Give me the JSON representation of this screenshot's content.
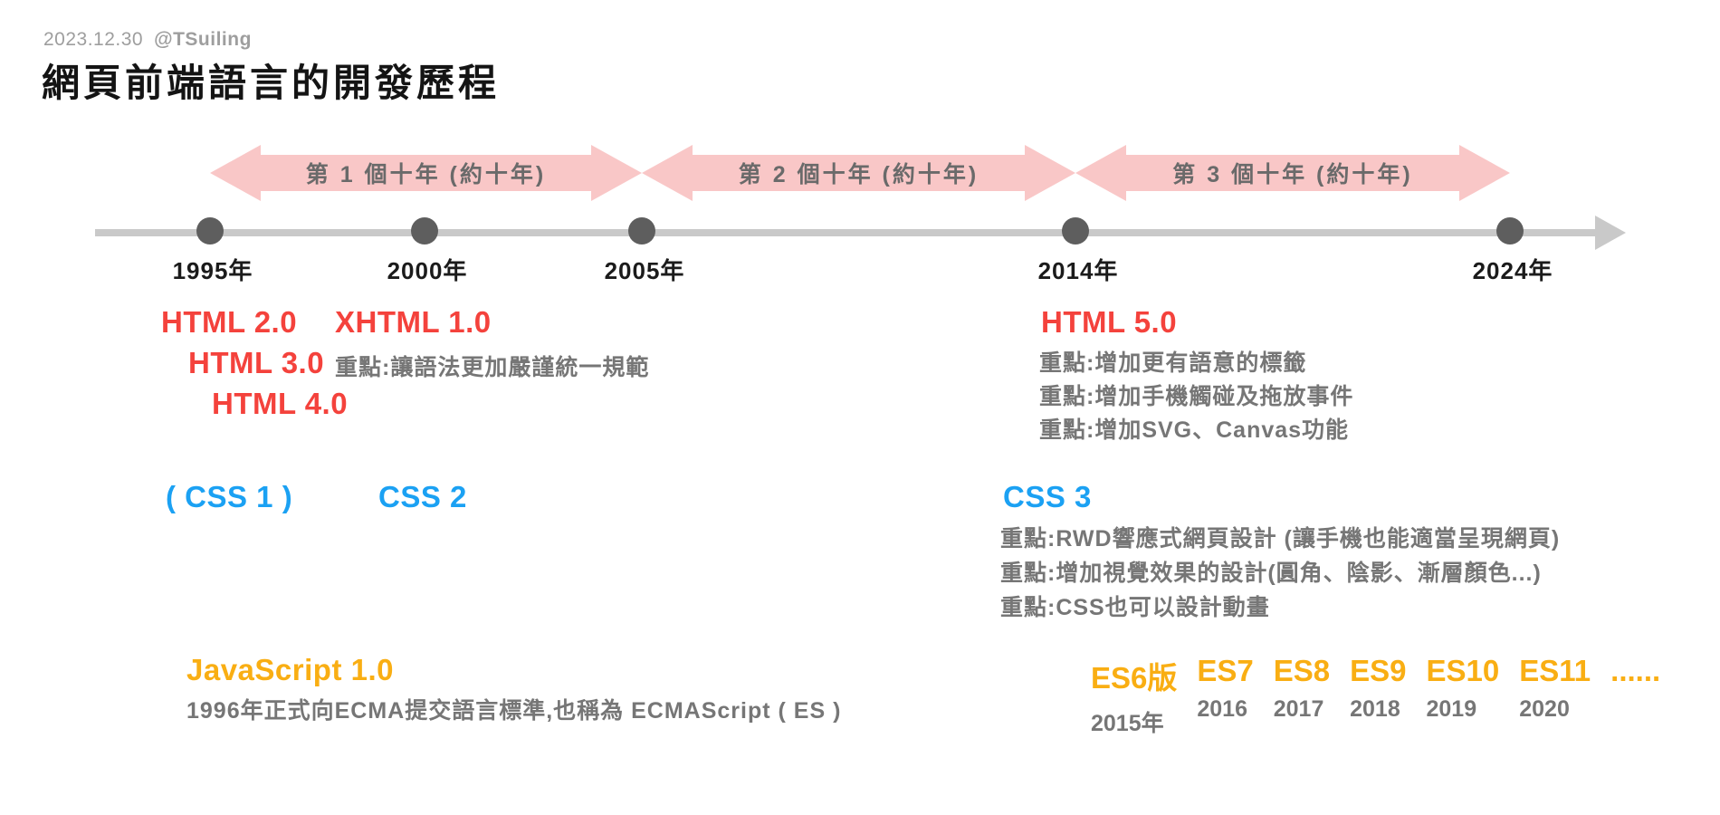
{
  "header": {
    "date": "2023.12.30",
    "author": "@TSuiling",
    "title": "網頁前端語言的開發歷程"
  },
  "decades": [
    {
      "label": "第 1 個十年 (約十年)"
    },
    {
      "label": "第 2 個十年 (約十年)"
    },
    {
      "label": "第 3 個十年 (約十年)"
    }
  ],
  "timeline": {
    "milestones": [
      {
        "label": "1995年"
      },
      {
        "label": "2000年"
      },
      {
        "label": "2005年"
      },
      {
        "label": "2014年"
      },
      {
        "label": "2024年"
      }
    ]
  },
  "html_track": {
    "v2": "HTML 2.0",
    "v3": "HTML 3.0",
    "v4": "HTML 4.0",
    "xhtml": {
      "title": "XHTML 1.0",
      "note": "重點:讓語法更加嚴謹統一規範"
    },
    "html5": {
      "title": "HTML 5.0",
      "notes": [
        "重點:增加更有語意的標籤",
        "重點:增加手機觸碰及拖放事件",
        "重點:增加SVG、Canvas功能"
      ]
    }
  },
  "css_track": {
    "css1": "( CSS 1 )",
    "css2": "CSS 2",
    "css3": {
      "title": "CSS 3",
      "notes": [
        "重點:RWD響應式網頁設計 (讓手機也能適當呈現網頁)",
        "重點:增加視覺效果的設計(圓角、陰影、漸層顏色...)",
        "重點:CSS也可以設計動畫"
      ]
    }
  },
  "js_track": {
    "title": "JavaScript 1.0",
    "note": "1996年正式向ECMA提交語言標準,也稱為 ECMAScript ( ES )",
    "es_versions": [
      {
        "name": "ES6版",
        "year": "2015年"
      },
      {
        "name": "ES7",
        "year": "2016"
      },
      {
        "name": "ES8",
        "year": "2017"
      },
      {
        "name": "ES9",
        "year": "2018"
      },
      {
        "name": "ES10",
        "year": "2019"
      },
      {
        "name": "ES11",
        "year": "2020"
      },
      {
        "name": "......",
        "year": ""
      }
    ]
  },
  "colors": {
    "pink": "#f9c7c7",
    "red": "#f4423c",
    "blue": "#1ba1f3",
    "orange": "#f9ae13",
    "note-gray": "#767676",
    "arrow-text": "#6a6a6a",
    "axis": "#c9c9c9",
    "dot": "#5e5e5e",
    "ink": "#1b1b1b",
    "muted": "#9e9e9e"
  }
}
